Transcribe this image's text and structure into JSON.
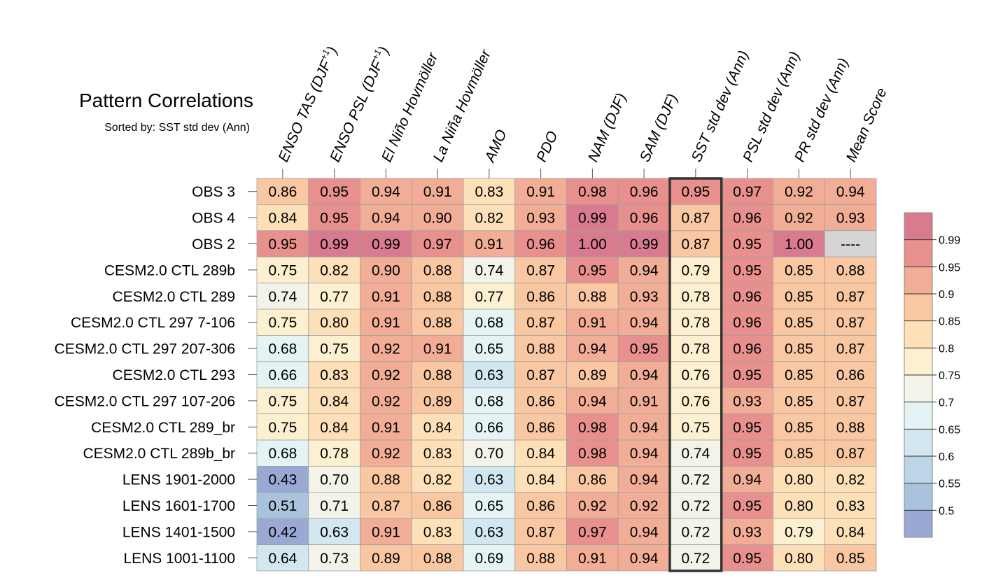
{
  "chart_data": {
    "type": "heatmap",
    "title": "Pattern Correlations",
    "subtitle": "Sorted by: SST std dev (Ann)",
    "columns": [
      "ENSO TAS (DJF+1)",
      "ENSO PSL (DJF+1)",
      "El Niño Hovmöller",
      "La Niña Hovmöller",
      "AMO",
      "PDO",
      "NAM (DJF)",
      "SAM (DJF)",
      "SST std dev (Ann)",
      "PSL std dev (Ann)",
      "PR std dev (Ann)",
      "Mean Score"
    ],
    "column_label_parts": [
      {
        "main": "ENSO TAS (DJF",
        "sup": "+1",
        "tail": ")"
      },
      {
        "main": "ENSO PSL (DJF",
        "sup": "+1",
        "tail": ")"
      },
      {
        "main": "El Niño Hovmöller",
        "sup": "",
        "tail": ""
      },
      {
        "main": "La Niña Hovmöller",
        "sup": "",
        "tail": ""
      },
      {
        "main": "AMO",
        "sup": "",
        "tail": ""
      },
      {
        "main": "PDO",
        "sup": "",
        "tail": ""
      },
      {
        "main": "NAM (DJF)",
        "sup": "",
        "tail": ""
      },
      {
        "main": "SAM (DJF)",
        "sup": "",
        "tail": ""
      },
      {
        "main": "SST std dev (Ann)",
        "sup": "",
        "tail": ""
      },
      {
        "main": "PSL std dev (Ann)",
        "sup": "",
        "tail": ""
      },
      {
        "main": "PR std dev (Ann)",
        "sup": "",
        "tail": ""
      },
      {
        "main": "Mean Score",
        "sup": "",
        "tail": ""
      }
    ],
    "rows": [
      "OBS 3",
      "OBS 4",
      "OBS 2",
      "CESM2.0 CTL 289b",
      "CESM2.0 CTL 289",
      "CESM2.0 CTL 297 7-106",
      "CESM2.0 CTL 297 207-306",
      "CESM2.0 CTL 293",
      "CESM2.0 CTL 297 107-206",
      "CESM2.0 CTL 289_br",
      "CESM2.0 CTL 289b_br",
      "LENS 1901-2000",
      "LENS 1601-1700",
      "LENS 1401-1500",
      "LENS 1001-1100"
    ],
    "values": [
      [
        "0.86",
        "0.95",
        "0.94",
        "0.91",
        "0.83",
        "0.91",
        "0.98",
        "0.96",
        "0.95",
        "0.97",
        "0.92",
        "0.94"
      ],
      [
        "0.84",
        "0.95",
        "0.94",
        "0.90",
        "0.82",
        "0.93",
        "0.99",
        "0.96",
        "0.87",
        "0.96",
        "0.92",
        "0.93"
      ],
      [
        "0.95",
        "0.99",
        "0.99",
        "0.97",
        "0.91",
        "0.96",
        "1.00",
        "0.99",
        "0.87",
        "0.95",
        "1.00",
        "----"
      ],
      [
        "0.75",
        "0.82",
        "0.90",
        "0.88",
        "0.74",
        "0.87",
        "0.95",
        "0.94",
        "0.79",
        "0.95",
        "0.85",
        "0.88"
      ],
      [
        "0.74",
        "0.77",
        "0.91",
        "0.88",
        "0.77",
        "0.86",
        "0.88",
        "0.93",
        "0.78",
        "0.96",
        "0.85",
        "0.87"
      ],
      [
        "0.75",
        "0.80",
        "0.91",
        "0.88",
        "0.68",
        "0.87",
        "0.91",
        "0.94",
        "0.78",
        "0.96",
        "0.85",
        "0.87"
      ],
      [
        "0.68",
        "0.75",
        "0.92",
        "0.91",
        "0.65",
        "0.88",
        "0.94",
        "0.95",
        "0.78",
        "0.96",
        "0.85",
        "0.87"
      ],
      [
        "0.66",
        "0.83",
        "0.92",
        "0.88",
        "0.63",
        "0.87",
        "0.89",
        "0.94",
        "0.76",
        "0.95",
        "0.85",
        "0.86"
      ],
      [
        "0.75",
        "0.84",
        "0.92",
        "0.89",
        "0.68",
        "0.86",
        "0.94",
        "0.91",
        "0.76",
        "0.93",
        "0.85",
        "0.87"
      ],
      [
        "0.75",
        "0.84",
        "0.91",
        "0.84",
        "0.66",
        "0.86",
        "0.98",
        "0.94",
        "0.75",
        "0.95",
        "0.85",
        "0.88"
      ],
      [
        "0.68",
        "0.78",
        "0.92",
        "0.83",
        "0.70",
        "0.84",
        "0.98",
        "0.94",
        "0.74",
        "0.95",
        "0.85",
        "0.87"
      ],
      [
        "0.43",
        "0.70",
        "0.88",
        "0.82",
        "0.63",
        "0.84",
        "0.86",
        "0.94",
        "0.72",
        "0.94",
        "0.80",
        "0.82"
      ],
      [
        "0.51",
        "0.71",
        "0.87",
        "0.86",
        "0.65",
        "0.86",
        "0.92",
        "0.92",
        "0.72",
        "0.95",
        "0.80",
        "0.83"
      ],
      [
        "0.42",
        "0.63",
        "0.91",
        "0.83",
        "0.63",
        "0.87",
        "0.97",
        "0.94",
        "0.72",
        "0.93",
        "0.79",
        "0.84"
      ],
      [
        "0.64",
        "0.73",
        "0.89",
        "0.88",
        "0.69",
        "0.88",
        "0.91",
        "0.94",
        "0.72",
        "0.95",
        "0.80",
        "0.85"
      ]
    ],
    "highlighted_column": "SST std dev (Ann)",
    "missing_color": "#d4d4d4",
    "colorbar": {
      "labels": [
        "0.99",
        "0.95",
        "0.9",
        "0.85",
        "0.8",
        "0.75",
        "0.7",
        "0.65",
        "0.6",
        "0.55",
        "0.5"
      ],
      "thresholds": [
        0.5,
        0.55,
        0.6,
        0.65,
        0.7,
        0.75,
        0.8,
        0.85,
        0.9,
        0.95,
        0.99
      ],
      "colors": [
        "#9aa9d3",
        "#a9c3de",
        "#bcd6e7",
        "#d2e7ef",
        "#e6f3f4",
        "#f4f3e9",
        "#fdf0d0",
        "#fde0b7",
        "#f9c8a3",
        "#f2ad96",
        "#e8908d",
        "#d97b8e"
      ]
    }
  }
}
